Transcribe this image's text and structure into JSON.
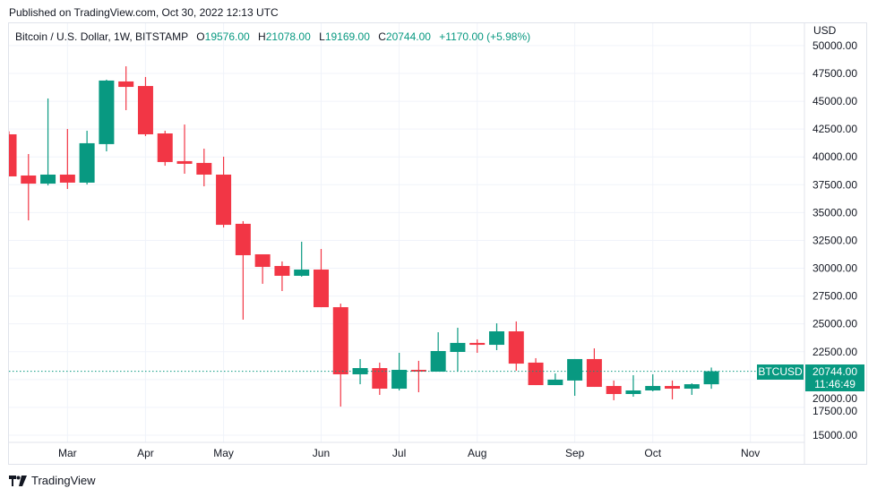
{
  "published": "Published on TradingView.com, Oct 30, 2022 12:13 UTC",
  "legend": {
    "title": "Bitcoin / U.S. Dollar, 1W, BITSTAMP",
    "o_label": "O",
    "o": "19576.00",
    "h_label": "H",
    "h": "21078.00",
    "l_label": "L",
    "l": "19169.00",
    "c_label": "C",
    "c": "20744.00",
    "change": "+1170.00 (+5.98%)"
  },
  "currency": "USD",
  "price_tag": {
    "symbol": "BTCUSD",
    "price": "20744.00",
    "countdown": "11:46:49"
  },
  "logo_text": "TradingView",
  "colors": {
    "up": "#089981",
    "down": "#f23645",
    "grid": "#f0f3fa"
  },
  "chart_data": {
    "type": "candlestick",
    "ylim": [
      15000,
      50000
    ],
    "y_ticks": [
      "50000.00",
      "47500.00",
      "45000.00",
      "42500.00",
      "40000.00",
      "37500.00",
      "35000.00",
      "32500.00",
      "30000.00",
      "27500.00",
      "25000.00",
      "22500.00",
      "20000.00",
      "17500.00",
      "15000.00"
    ],
    "x_ticks": [
      {
        "label": "Mar",
        "date": "2022-03-07"
      },
      {
        "label": "Apr",
        "date": "2022-04-04"
      },
      {
        "label": "May",
        "date": "2022-05-02"
      },
      {
        "label": "Jun",
        "date": "2022-06-06"
      },
      {
        "label": "Jul",
        "date": "2022-07-04"
      },
      {
        "label": "Aug",
        "date": "2022-08-01"
      },
      {
        "label": "Sep",
        "date": "2022-09-05"
      },
      {
        "label": "Oct",
        "date": "2022-10-03"
      },
      {
        "label": "Nov",
        "date": "2022-11-07"
      }
    ],
    "last_price": 20744,
    "candles": [
      {
        "date": "2022-02-14",
        "o": 42030,
        "h": 42300,
        "l": 38250,
        "c": 38250
      },
      {
        "date": "2022-02-21",
        "o": 38330,
        "h": 40260,
        "l": 34300,
        "c": 37600
      },
      {
        "date": "2022-02-28",
        "o": 37600,
        "h": 45250,
        "l": 37440,
        "c": 38410
      },
      {
        "date": "2022-03-07",
        "o": 38410,
        "h": 42510,
        "l": 37120,
        "c": 37690
      },
      {
        "date": "2022-03-14",
        "o": 37690,
        "h": 42350,
        "l": 37520,
        "c": 41230
      },
      {
        "date": "2022-03-21",
        "o": 41150,
        "h": 46940,
        "l": 40500,
        "c": 46860
      },
      {
        "date": "2022-03-28",
        "o": 46780,
        "h": 48140,
        "l": 44200,
        "c": 46290
      },
      {
        "date": "2022-04-04",
        "o": 46370,
        "h": 47180,
        "l": 41870,
        "c": 42030
      },
      {
        "date": "2022-04-11",
        "o": 42110,
        "h": 42350,
        "l": 39210,
        "c": 39540
      },
      {
        "date": "2022-04-18",
        "o": 39620,
        "h": 42910,
        "l": 38490,
        "c": 39380
      },
      {
        "date": "2022-04-25",
        "o": 39460,
        "h": 40740,
        "l": 37360,
        "c": 38410
      },
      {
        "date": "2022-05-02",
        "o": 38410,
        "h": 40020,
        "l": 33660,
        "c": 33900
      },
      {
        "date": "2022-05-09",
        "o": 33990,
        "h": 34230,
        "l": 25380,
        "c": 31170
      },
      {
        "date": "2022-05-16",
        "o": 31250,
        "h": 31250,
        "l": 28600,
        "c": 30120
      },
      {
        "date": "2022-05-23",
        "o": 30200,
        "h": 30610,
        "l": 27950,
        "c": 29320
      },
      {
        "date": "2022-05-30",
        "o": 29320,
        "h": 32380,
        "l": 29240,
        "c": 29880
      },
      {
        "date": "2022-06-06",
        "o": 29880,
        "h": 31730,
        "l": 26500,
        "c": 26500
      },
      {
        "date": "2022-06-13",
        "o": 26500,
        "h": 26820,
        "l": 17570,
        "c": 20470
      },
      {
        "date": "2022-06-20",
        "o": 20470,
        "h": 21840,
        "l": 19580,
        "c": 21030
      },
      {
        "date": "2022-06-27",
        "o": 21030,
        "h": 21520,
        "l": 18620,
        "c": 19180
      },
      {
        "date": "2022-07-04",
        "o": 19180,
        "h": 22400,
        "l": 19020,
        "c": 20870
      },
      {
        "date": "2022-07-11",
        "o": 20870,
        "h": 21680,
        "l": 18860,
        "c": 20710
      },
      {
        "date": "2022-07-18",
        "o": 20710,
        "h": 24250,
        "l": 20710,
        "c": 22560
      },
      {
        "date": "2022-07-25",
        "o": 22480,
        "h": 24650,
        "l": 20710,
        "c": 23290
      },
      {
        "date": "2022-08-01",
        "o": 23290,
        "h": 23610,
        "l": 22400,
        "c": 23120
      },
      {
        "date": "2022-08-08",
        "o": 23120,
        "h": 25050,
        "l": 22640,
        "c": 24330
      },
      {
        "date": "2022-08-15",
        "o": 24330,
        "h": 25220,
        "l": 20790,
        "c": 21430
      },
      {
        "date": "2022-08-22",
        "o": 21520,
        "h": 21920,
        "l": 19500,
        "c": 19500
      },
      {
        "date": "2022-08-29",
        "o": 19500,
        "h": 20550,
        "l": 19500,
        "c": 19990
      },
      {
        "date": "2022-09-05",
        "o": 19910,
        "h": 21840,
        "l": 18540,
        "c": 21840
      },
      {
        "date": "2022-09-12",
        "o": 21840,
        "h": 22800,
        "l": 19340,
        "c": 19340
      },
      {
        "date": "2022-09-19",
        "o": 19420,
        "h": 19910,
        "l": 18140,
        "c": 18700
      },
      {
        "date": "2022-09-26",
        "o": 18700,
        "h": 20390,
        "l": 18460,
        "c": 19020
      },
      {
        "date": "2022-10-03",
        "o": 19020,
        "h": 20470,
        "l": 18940,
        "c": 19420
      },
      {
        "date": "2022-10-10",
        "o": 19420,
        "h": 19910,
        "l": 18220,
        "c": 19180
      },
      {
        "date": "2022-10-17",
        "o": 19180,
        "h": 19660,
        "l": 18620,
        "c": 19580
      },
      {
        "date": "2022-10-24",
        "o": 19576,
        "h": 21078,
        "l": 19169,
        "c": 20744
      }
    ]
  }
}
